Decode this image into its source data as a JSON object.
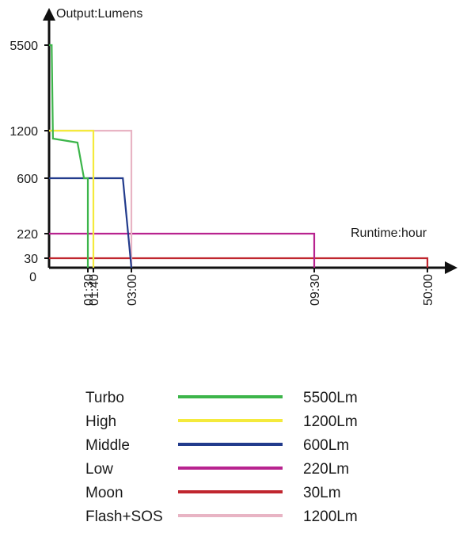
{
  "chart_data": {
    "type": "line",
    "title": "",
    "xlabel": "Runtime:hour",
    "ylabel": "Output:Lumens",
    "y_ticks": [
      {
        "value": 0,
        "label": "0"
      },
      {
        "value": 30,
        "label": "30"
      },
      {
        "value": 220,
        "label": "220"
      },
      {
        "value": 600,
        "label": "600"
      },
      {
        "value": 1200,
        "label": "1200"
      },
      {
        "value": 5500,
        "label": "5500"
      }
    ],
    "x_ticks": [
      {
        "value": 1.5,
        "label": "01:30"
      },
      {
        "value": 1.667,
        "label": "01:40"
      },
      {
        "value": 3,
        "label": "03:00"
      },
      {
        "value": 9.5,
        "label": "09:30"
      },
      {
        "value": 50,
        "label": "50:00"
      }
    ],
    "y_scale": "non-linear (categorical tick spacing)",
    "x_scale": "non-linear (categorical tick spacing)",
    "grid": false,
    "legend_position": "bottom",
    "series": [
      {
        "name": "Turbo",
        "level": "5500Lm",
        "color": "#3cb54a",
        "points": [
          [
            0,
            5500
          ],
          [
            0.1,
            5500
          ],
          [
            0.15,
            1100
          ],
          [
            1.1,
            1050
          ],
          [
            1.35,
            600
          ],
          [
            1.5,
            600
          ],
          [
            1.5,
            0
          ]
        ]
      },
      {
        "name": "High",
        "level": "1200Lm",
        "color": "#f4ea3c",
        "points": [
          [
            0,
            1200
          ],
          [
            1.667,
            1200
          ],
          [
            1.667,
            0
          ]
        ]
      },
      {
        "name": "Middle",
        "level": "600Lm",
        "color": "#223b8c",
        "points": [
          [
            0,
            600
          ],
          [
            2.7,
            600
          ],
          [
            3,
            0
          ]
        ]
      },
      {
        "name": "Low",
        "level": "220Lm",
        "color": "#b8238f",
        "points": [
          [
            0,
            220
          ],
          [
            9.5,
            220
          ],
          [
            9.5,
            0
          ]
        ]
      },
      {
        "name": "Moon",
        "level": "30Lm",
        "color": "#c0262e",
        "points": [
          [
            0,
            30
          ],
          [
            50,
            30
          ],
          [
            50,
            0
          ]
        ]
      },
      {
        "name": "Flash+SOS",
        "level": "1200Lm",
        "color": "#e8b4c4",
        "points": [
          [
            0,
            1200
          ],
          [
            3,
            1200
          ],
          [
            3,
            0
          ]
        ]
      }
    ]
  }
}
